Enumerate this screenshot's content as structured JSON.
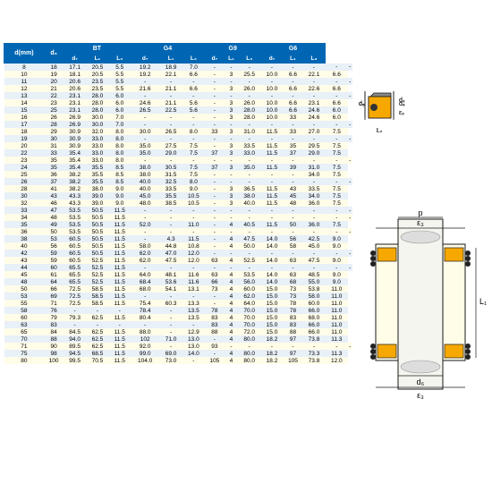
{
  "table": {
    "header_bg": "#0066b3",
    "header_fg": "#ffffff",
    "row_colors": [
      "#e8f0f8",
      "#fffce8"
    ],
    "text_color": "#333333",
    "main_col": "d(mm)",
    "d3_col": "d₃",
    "groups": [
      "BT",
      "G4",
      "G9",
      "G6"
    ],
    "sub_cols": [
      "d₇",
      "L₁",
      "L₃"
    ],
    "rows": [
      [
        "8",
        "18",
        "17.1",
        "20.5",
        "5.5",
        "19.2",
        "18.9",
        "7.0",
        "-",
        "-",
        "-",
        "-",
        "-",
        "-",
        "-",
        "-"
      ],
      [
        "10",
        "19",
        "18.1",
        "20.5",
        "5.5",
        "19.2",
        "22.1",
        "6.6",
        "-",
        "3",
        "25.5",
        "10.0",
        "6.6",
        "22.1",
        "6.6"
      ],
      [
        "11",
        "20",
        "20.6",
        "23.5",
        "5.5",
        "-",
        "-",
        "-",
        "-",
        "-",
        "-",
        "-",
        "-",
        "-",
        "-",
        "-"
      ],
      [
        "12",
        "21",
        "20.6",
        "23.5",
        "5.5",
        "21.6",
        "21.1",
        "6.6",
        "-",
        "3",
        "26.0",
        "10.0",
        "6.6",
        "22.6",
        "6.6"
      ],
      [
        "13",
        "22",
        "23.1",
        "28.0",
        "6.0",
        "-",
        "-",
        "-",
        "-",
        "-",
        "-",
        "-",
        "-",
        "-",
        "-",
        "-"
      ],
      [
        "14",
        "23",
        "23.1",
        "28.0",
        "6.0",
        "24.6",
        "21.1",
        "5.6",
        "-",
        "3",
        "26.0",
        "10.0",
        "6.6",
        "23.1",
        "6.6"
      ],
      [
        "15",
        "25",
        "23.1",
        "28.0",
        "6.0",
        "26.5",
        "22.5",
        "5.6",
        "-",
        "3",
        "28.0",
        "10.0",
        "6.6",
        "24.6",
        "6.0"
      ],
      [
        "16",
        "26",
        "26.9",
        "30.0",
        "7.0",
        "-",
        "-",
        "-",
        "-",
        "3",
        "28.0",
        "10.0",
        "33",
        "24.6",
        "6.0"
      ],
      [
        "17",
        "28",
        "26.9",
        "30.0",
        "7.0",
        "-",
        "-",
        "-",
        "-",
        "-",
        "-",
        "-",
        "-",
        "-",
        "-",
        "-"
      ],
      [
        "18",
        "29",
        "30.9",
        "32.0",
        "8.0",
        "30.0",
        "26.5",
        "8.0",
        "33",
        "3",
        "31.0",
        "11.5",
        "33",
        "27.0",
        "7.5"
      ],
      [
        "19",
        "30",
        "30.9",
        "33.0",
        "8.0",
        "-",
        "-",
        "-",
        "-",
        "-",
        "-",
        "-",
        "-",
        "-",
        "-",
        "-"
      ],
      [
        "20",
        "31",
        "30.9",
        "33.0",
        "8.0",
        "35.0",
        "27.5",
        "7.5",
        "-",
        "3",
        "33.5",
        "11.5",
        "35",
        "29.5",
        "7.5"
      ],
      [
        "22",
        "33",
        "35.4",
        "33.0",
        "8.0",
        "35.0",
        "29.0",
        "7.5",
        "37",
        "3",
        "33.0",
        "11.5",
        "37",
        "29.0",
        "7.5"
      ],
      [
        "23",
        "35",
        "35.4",
        "33.0",
        "8.0",
        "-",
        "-",
        "-",
        "-",
        "-",
        "-",
        "-",
        "-",
        "-",
        "-",
        "-"
      ],
      [
        "24",
        "35",
        "35.4",
        "35.5",
        "8.5",
        "38.0",
        "30.5",
        "7.5",
        "37",
        "3",
        "35.0",
        "11.5",
        "39",
        "31.0",
        "7.5"
      ],
      [
        "25",
        "36",
        "38.2",
        "35.5",
        "8.5",
        "38.0",
        "31.5",
        "7.5",
        "-",
        "-",
        "-",
        "-",
        "-",
        "34.0",
        "7.5"
      ],
      [
        "26",
        "37",
        "38.2",
        "35.5",
        "8.5",
        "40.0",
        "32.5",
        "8.0",
        "-",
        "-",
        "-",
        "-",
        "-",
        "-",
        "-",
        "-"
      ],
      [
        "28",
        "41",
        "38.2",
        "38.0",
        "9.0",
        "40.0",
        "33.5",
        "9.0",
        "-",
        "3",
        "36.5",
        "11.5",
        "43",
        "33.5",
        "7.5"
      ],
      [
        "30",
        "43",
        "43.3",
        "39.0",
        "9.0",
        "45.0",
        "35.5",
        "10.5",
        "-",
        "3",
        "38.0",
        "11.5",
        "45",
        "34.0",
        "7.5"
      ],
      [
        "32",
        "46",
        "43.3",
        "39.0",
        "9.0",
        "48.0",
        "38.5",
        "10.5",
        "-",
        "3",
        "40.0",
        "11.5",
        "48",
        "36.0",
        "7.5"
      ],
      [
        "33",
        "47",
        "53.5",
        "50.5",
        "11.5",
        "-",
        "-",
        "-",
        "-",
        "-",
        "-",
        "-",
        "-",
        "-",
        "-",
        "-"
      ],
      [
        "34",
        "48",
        "53.5",
        "50.5",
        "11.5",
        "-",
        "-",
        "-",
        "-",
        "-",
        "-",
        "-",
        "-",
        "-",
        "-",
        "-"
      ],
      [
        "35",
        "49",
        "53.5",
        "50.5",
        "11.5",
        "52.0",
        "-",
        "11.0",
        "-",
        "4",
        "40.5",
        "11.5",
        "50",
        "36.0",
        "7.5"
      ],
      [
        "36",
        "50",
        "53.5",
        "50.5",
        "11.5",
        "-",
        "-",
        "-",
        "-",
        "-",
        "-",
        "-",
        "-",
        "-",
        "-",
        "-"
      ],
      [
        "38",
        "53",
        "60.5",
        "50.5",
        "11.5",
        "-",
        "4.3",
        "11.5",
        "-",
        "4",
        "47.5",
        "14.0",
        "56",
        "42.5",
        "9.0"
      ],
      [
        "40",
        "56",
        "60.5",
        "50.5",
        "11.5",
        "58.0",
        "44.8",
        "10.8",
        "-",
        "4",
        "50.0",
        "14.0",
        "58",
        "45.0",
        "9.0"
      ],
      [
        "42",
        "59",
        "60.5",
        "50.5",
        "11.5",
        "62.0",
        "47.0",
        "12.0",
        "-",
        "-",
        "-",
        "-",
        "-",
        "-",
        "-",
        "-"
      ],
      [
        "43",
        "59",
        "60.5",
        "52.5",
        "11.5",
        "62.0",
        "47.5",
        "12.0",
        "63",
        "4",
        "52.5",
        "14.0",
        "63",
        "47.5",
        "9.0"
      ],
      [
        "44",
        "60",
        "65.5",
        "52.5",
        "11.5",
        "-",
        "-",
        "-",
        "-",
        "-",
        "-",
        "-",
        "-",
        "-",
        "-",
        "-"
      ],
      [
        "45",
        "61",
        "65.5",
        "52.5",
        "11.5",
        "64.0",
        "48.1",
        "11.6",
        "63",
        "4",
        "53.5",
        "14.0",
        "63",
        "48.5",
        "9.0"
      ],
      [
        "48",
        "64",
        "65.5",
        "52.5",
        "11.5",
        "68.4",
        "53.6",
        "11.6",
        "66",
        "4",
        "56.0",
        "14.0",
        "68",
        "55.0",
        "9.0"
      ],
      [
        "50",
        "66",
        "72.5",
        "58.5",
        "11.5",
        "68.0",
        "54.1",
        "13.1",
        "73",
        "4",
        "60.0",
        "15.0",
        "73",
        "53.8",
        "11.0"
      ],
      [
        "53",
        "69",
        "72.5",
        "58.5",
        "11.5",
        "-",
        "-",
        "-",
        "-",
        "4",
        "62.0",
        "15.0",
        "73",
        "58.0",
        "11.0"
      ],
      [
        "55",
        "71",
        "72.5",
        "58.5",
        "11.5",
        "75.4",
        "60.3",
        "13.3",
        "-",
        "4",
        "64.0",
        "15.0",
        "78",
        "60.0",
        "11.0"
      ],
      [
        "58",
        "76",
        "-",
        "-",
        "-",
        "78.4",
        "-",
        "13.5",
        "78",
        "4",
        "70.0",
        "15.0",
        "78",
        "66.0",
        "11.0"
      ],
      [
        "60",
        "79",
        "79.3",
        "62.5",
        "11.5",
        "80.4",
        "-",
        "13.5",
        "83",
        "4",
        "70.0",
        "15.0",
        "83",
        "68.0",
        "11.0"
      ],
      [
        "63",
        "83",
        "-",
        "-",
        "-",
        "-",
        "-",
        "-",
        "83",
        "4",
        "70.0",
        "15.0",
        "83",
        "66.0",
        "11.0"
      ],
      [
        "65",
        "84",
        "84.5",
        "62.5",
        "11.5",
        "88.0",
        "-",
        "12.9",
        "88",
        "4",
        "72.0",
        "15.0",
        "88",
        "66.0",
        "11.0"
      ],
      [
        "70",
        "88",
        "94.0",
        "62.5",
        "11.5",
        "102",
        "71.0",
        "13.0",
        "-",
        "4",
        "80.0",
        "18.2",
        "97",
        "73.8",
        "11.3"
      ],
      [
        "71",
        "90",
        "89.5",
        "62.5",
        "11.5",
        "92.0",
        "-",
        "13.0",
        "93",
        "-",
        "-",
        "-",
        "-",
        "-",
        "-",
        "-"
      ],
      [
        "75",
        "98",
        "94.5",
        "68.5",
        "11.5",
        "99.0",
        "69.0",
        "14.0",
        "-",
        "4",
        "80.0",
        "18.2",
        "97",
        "73.3",
        "11.3"
      ],
      [
        "80",
        "100",
        "99.5",
        "70.5",
        "11.5",
        "104.0",
        "73.0",
        "-",
        "105",
        "4",
        "80.0",
        "18.2",
        "105",
        "73.8",
        "12.0"
      ]
    ]
  },
  "diagrams": {
    "seal_color": "#f7a800",
    "metal_color": "#c0c0c0",
    "line_color": "#1a1a1a",
    "labels": {
      "d4": "d₄",
      "d5": "d₅",
      "d6": "d₆",
      "d7": "d₇",
      "d8": "d₈",
      "L1": "L₁",
      "L7": "L₇",
      "big_d3": "d₃",
      "big_d6": "d₆",
      "big_L1": "L₁",
      "big_p": "p",
      "big_p3": "ε₃"
    }
  }
}
